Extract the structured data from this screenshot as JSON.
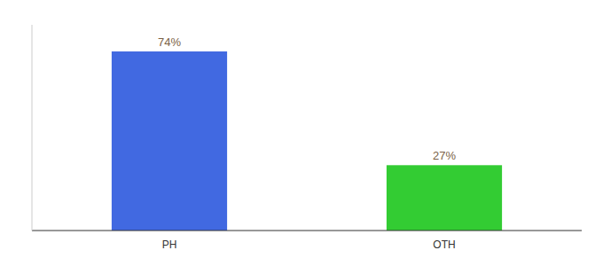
{
  "chart_data": {
    "type": "bar",
    "categories": [
      "PH",
      "OTH"
    ],
    "values": [
      74,
      27
    ],
    "value_labels": [
      "74%",
      "27%"
    ],
    "colors": [
      "#4169e1",
      "#33cc33"
    ],
    "ylim": [
      0,
      85
    ],
    "data_labels": true,
    "tick_labels": "x",
    "grid": false
  }
}
